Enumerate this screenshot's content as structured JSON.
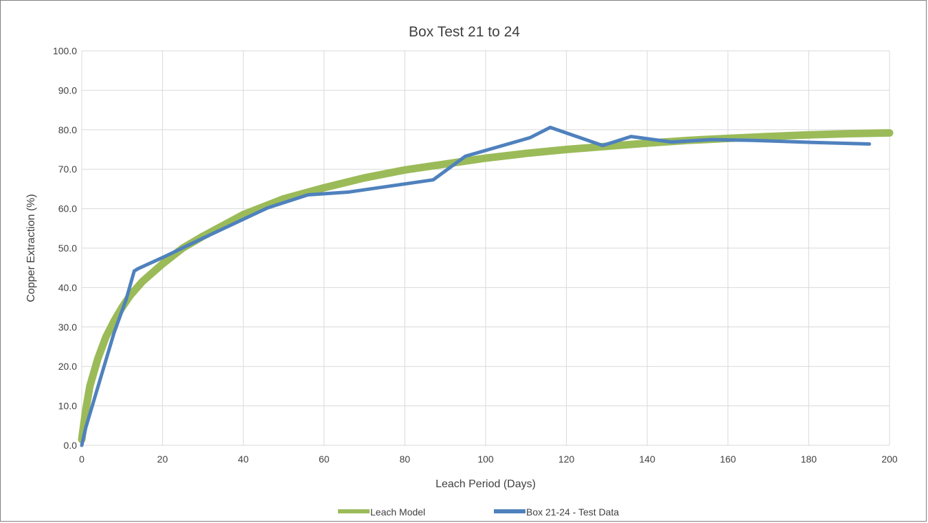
{
  "chart_data": {
    "type": "line",
    "title": "Box Test 21 to 24",
    "xlabel": "Leach Period (Days)",
    "ylabel": "Copper Extraction (%)",
    "xlim": [
      0,
      200
    ],
    "ylim": [
      0,
      100
    ],
    "x_ticks": [
      "0",
      "20",
      "40",
      "60",
      "80",
      "100",
      "120",
      "140",
      "160",
      "180",
      "200"
    ],
    "y_ticks": [
      "0.0",
      "10.0",
      "20.0",
      "30.0",
      "40.0",
      "50.0",
      "60.0",
      "70.0",
      "80.0",
      "90.0",
      "100.0"
    ],
    "grid": true,
    "legend_position": "bottom",
    "series": [
      {
        "name": "Leach Model",
        "color": "#9bbb59",
        "x": [
          0,
          1,
          2,
          4,
          6,
          8,
          10,
          12,
          15,
          20,
          25,
          30,
          40,
          50,
          60,
          70,
          80,
          90,
          100,
          110,
          120,
          130,
          140,
          150,
          160,
          170,
          180,
          190,
          200
        ],
        "y": [
          1.5,
          9,
          15,
          22,
          27.5,
          31.5,
          35,
          38,
          41.5,
          46,
          50,
          53,
          58.5,
          62.5,
          65.3,
          67.8,
          69.8,
          71.3,
          72.8,
          74,
          75,
          75.8,
          76.6,
          77.3,
          77.8,
          78.3,
          78.7,
          79,
          79.2
        ]
      },
      {
        "name": "Box 21-24 - Test Data",
        "color": "#4f81bd",
        "x": [
          0,
          1,
          8,
          11,
          13,
          14,
          20,
          30,
          46,
          56,
          66,
          87,
          95,
          111,
          116,
          129,
          136,
          146,
          156,
          166,
          181,
          195
        ],
        "y": [
          0,
          4.5,
          28.5,
          37,
          44.2,
          44.8,
          47.6,
          52.5,
          60.2,
          63.5,
          64.2,
          67.3,
          73.3,
          78,
          80.6,
          76,
          78.3,
          76.9,
          77.5,
          77.3,
          76.8,
          76.4
        ]
      }
    ]
  }
}
